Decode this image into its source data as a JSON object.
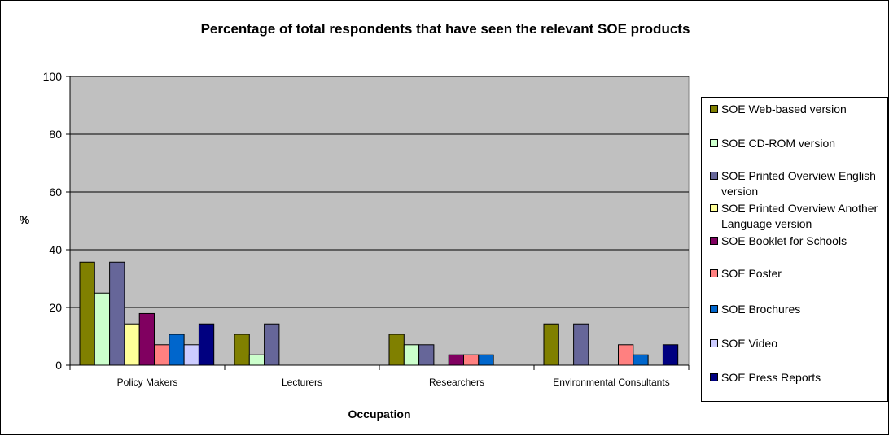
{
  "chart_data": {
    "type": "bar",
    "title": "Percentage of total respondents that have seen the relevant SOE products",
    "xlabel": "Occupation",
    "ylabel": "%",
    "ylim": [
      0,
      100
    ],
    "yticks": [
      0,
      20,
      40,
      60,
      80,
      100
    ],
    "grid": true,
    "legend_position": "right",
    "plot_background": "#C0C0C0",
    "categories": [
      "Policy Makers",
      "Lecturers",
      "Researchers",
      "Environmental Consultants"
    ],
    "series": [
      {
        "name": "SOE Web-based version",
        "color": "#808000",
        "values": [
          35.7,
          10.7,
          10.7,
          14.3
        ]
      },
      {
        "name": "SOE CD-ROM version",
        "color": "#CCFFCC",
        "values": [
          25.0,
          3.6,
          7.1,
          0
        ]
      },
      {
        "name": "SOE Printed Overview English version",
        "color": "#666699",
        "values": [
          35.7,
          14.3,
          7.1,
          14.3
        ]
      },
      {
        "name": "SOE Printed Overview Another Language version",
        "color": "#FFFF99",
        "values": [
          14.3,
          0,
          0,
          0
        ]
      },
      {
        "name": "SOE Booklet for Schools",
        "color": "#800060",
        "values": [
          17.9,
          0,
          3.6,
          0
        ]
      },
      {
        "name": "SOE Poster",
        "color": "#FF8080",
        "values": [
          7.1,
          0,
          3.6,
          7.1
        ]
      },
      {
        "name": "SOE Brochures",
        "color": "#0066CC",
        "values": [
          10.7,
          0,
          3.6,
          3.6
        ]
      },
      {
        "name": "SOE Video",
        "color": "#CCCCFF",
        "values": [
          7.1,
          0,
          0,
          0
        ]
      },
      {
        "name": "SOE Press Reports",
        "color": "#000080",
        "values": [
          14.3,
          0,
          0,
          7.1
        ]
      }
    ]
  }
}
